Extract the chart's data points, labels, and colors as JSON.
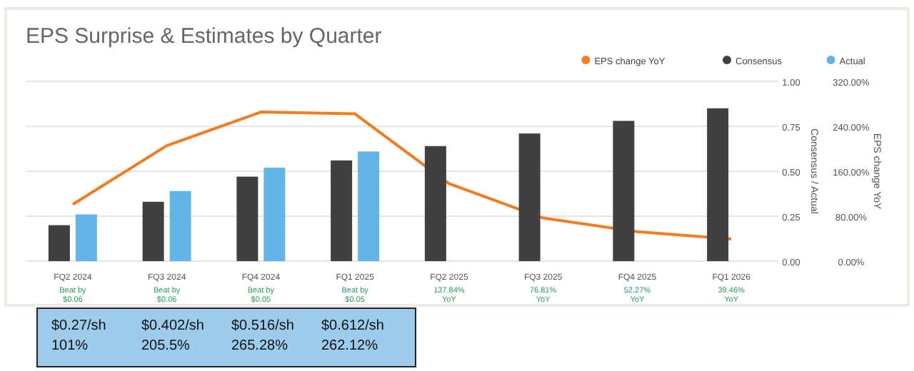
{
  "chart_data": {
    "type": "bar",
    "title": "EPS Surprise & Estimates by Quarter",
    "categories": [
      "FQ2 2024",
      "FQ3 2024",
      "FQ4 2024",
      "FQ1 2025",
      "FQ2 2025",
      "FQ3 2025",
      "FQ4 2025",
      "FQ1 2026"
    ],
    "series": [
      {
        "name": "EPS change YoY",
        "type": "line",
        "axis": "y2",
        "color": "#f47b20",
        "values": [
          101,
          205.5,
          265.28,
          262.12,
          137.84,
          76.81,
          52.27,
          39.46
        ]
      },
      {
        "name": "Consensus",
        "color": "#404040",
        "values": [
          0.2,
          0.33,
          0.47,
          0.56,
          0.64,
          0.71,
          0.78,
          0.85
        ]
      },
      {
        "name": "Actual",
        "color": "#63b4e8",
        "values": [
          0.26,
          0.39,
          0.52,
          0.61,
          null,
          null,
          null,
          null
        ]
      }
    ],
    "ylabel": "Consensus / Actual",
    "y2label": "EPS change YoY",
    "ylim": [
      0,
      1
    ],
    "yticks": [
      {
        "value": 0,
        "label": "0.00"
      },
      {
        "value": 0.25,
        "label": "0.25"
      },
      {
        "value": 0.5,
        "label": "0.50"
      },
      {
        "value": 0.75,
        "label": "0.75"
      },
      {
        "value": 1,
        "label": "1.00"
      }
    ],
    "y2lim": [
      0,
      320
    ],
    "y2ticks": [
      {
        "value": 0,
        "label": "0.00%"
      },
      {
        "value": 80,
        "label": "80.00%"
      },
      {
        "value": 160,
        "label": "160.00%"
      },
      {
        "value": 240,
        "label": "240.00%"
      },
      {
        "value": 320,
        "label": "320.00%"
      }
    ],
    "grid": "y",
    "legend": "top right",
    "marker": "none",
    "annotations": [
      "Beat by\n$0.06",
      "Beat by\n$0.06",
      "Beat by\n$0.05",
      "Beat by\n$0.05",
      "137.84%\nYoY",
      "76.81%\nYoY",
      "52.27%\nYoY",
      "39.46%\nYoY",
      "$0.27/sh\n101%",
      "$0.402/sh\n205.5%",
      "$0.516/sh\n265.28%",
      "$0.612/sh\n262.12%"
    ]
  }
}
